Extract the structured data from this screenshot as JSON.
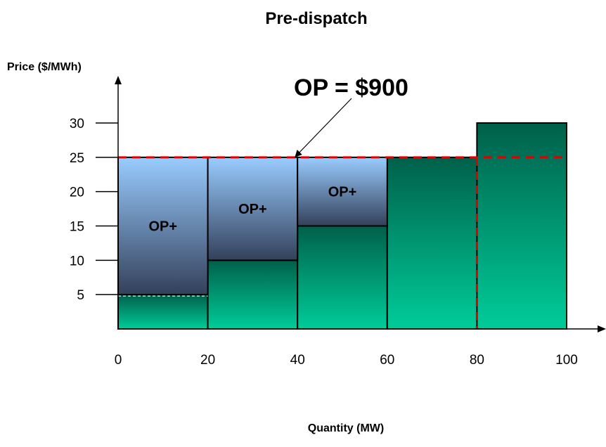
{
  "chart_data": {
    "type": "bar",
    "title": "Pre-dispatch",
    "xlabel": "Quantity (MW)",
    "ylabel": "Price ($/MWh)",
    "xlim": [
      0,
      100
    ],
    "ylim": [
      0,
      30
    ],
    "x_ticks": [
      "0",
      "20",
      "40",
      "60",
      "80",
      "100"
    ],
    "y_ticks": [
      "5",
      "10",
      "15",
      "20",
      "25",
      "30"
    ],
    "offers": [
      {
        "x_start": 0,
        "x_end": 20,
        "price": 5
      },
      {
        "x_start": 20,
        "x_end": 40,
        "price": 10
      },
      {
        "x_start": 40,
        "x_end": 60,
        "price": 15
      },
      {
        "x_start": 60,
        "x_end": 80,
        "price": 25
      },
      {
        "x_start": 80,
        "x_end": 100,
        "price": 30
      }
    ],
    "clearing_price": 25,
    "clearing_quantity": 80,
    "op_payments": [
      {
        "x_start": 0,
        "x_end": 20,
        "from_price": 5,
        "to_price": 25,
        "label": "OP+"
      },
      {
        "x_start": 20,
        "x_end": 40,
        "from_price": 10,
        "to_price": 25,
        "label": "OP+"
      },
      {
        "x_start": 40,
        "x_end": 60,
        "from_price": 15,
        "to_price": 25,
        "label": "OP+"
      }
    ],
    "annotation": "OP = $900",
    "colors": {
      "offer_top": "#00604a",
      "offer_bottom": "#00cc99",
      "op_top": "#99ccff",
      "op_bottom": "#33405a",
      "dashed_line": "#e00000"
    }
  }
}
